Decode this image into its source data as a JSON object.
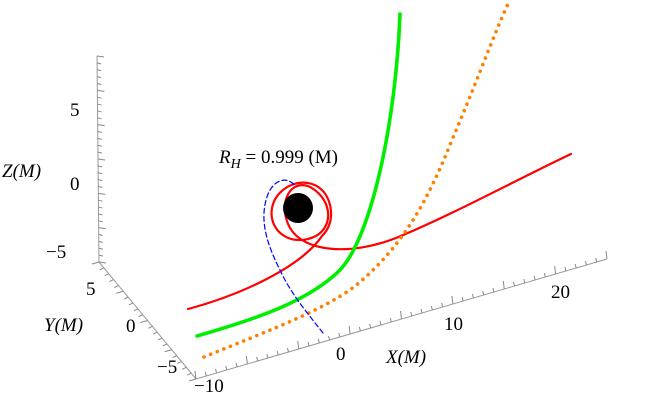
{
  "chart_data": {
    "type": "line",
    "plot_kind": "3d-trajectories",
    "annotation": {
      "symbol": "R",
      "subscript": "H",
      "equals": " = 0.999  (M)"
    },
    "axes": {
      "x": {
        "label": "X",
        "unit": "(M)",
        "ticks": [
          -10,
          0,
          10,
          20
        ]
      },
      "y": {
        "label": "Y",
        "unit": "(M)",
        "ticks": [
          5,
          0,
          -5
        ]
      },
      "z": {
        "label": "Z",
        "unit": "(M)",
        "ticks": [
          5,
          0,
          -5
        ]
      }
    },
    "tick_text": {
      "x": [
        "−10",
        "0",
        "10",
        "20"
      ],
      "y": [
        "5",
        "0",
        "−5"
      ],
      "z": [
        "5",
        "0",
        "−5"
      ]
    },
    "series": [
      {
        "color": "#ff0000",
        "style": "solid",
        "width": "medium"
      },
      {
        "color": "#00ee00",
        "style": "solid",
        "width": "thick"
      },
      {
        "color": "#ff8000",
        "style": "dotted",
        "width": "thick"
      },
      {
        "color": "#0000ff",
        "style": "dashed",
        "width": "thin"
      }
    ],
    "black_hole_color": "#000000"
  }
}
